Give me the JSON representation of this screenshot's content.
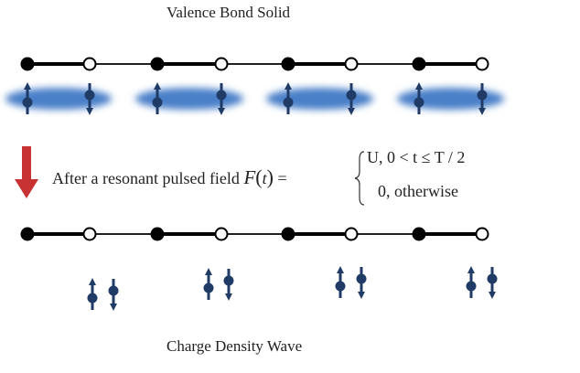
{
  "title_top": "Valence Bond Solid",
  "title_bottom": "Charge Density Wave",
  "caption": {
    "text": "After a resonant pulsed field",
    "func": "F",
    "arg": "t",
    "eq": "=",
    "case1": "U,  0 < t ≤ T / 2",
    "case2": "0,  otherwise"
  },
  "colors": {
    "bond": "#000000",
    "spin": "#1f3b66",
    "cloud": "#4a7fc8",
    "arrow": "#c83232"
  },
  "sites": [
    "filled",
    "open",
    "filled",
    "open",
    "filled",
    "open",
    "filled",
    "open"
  ]
}
